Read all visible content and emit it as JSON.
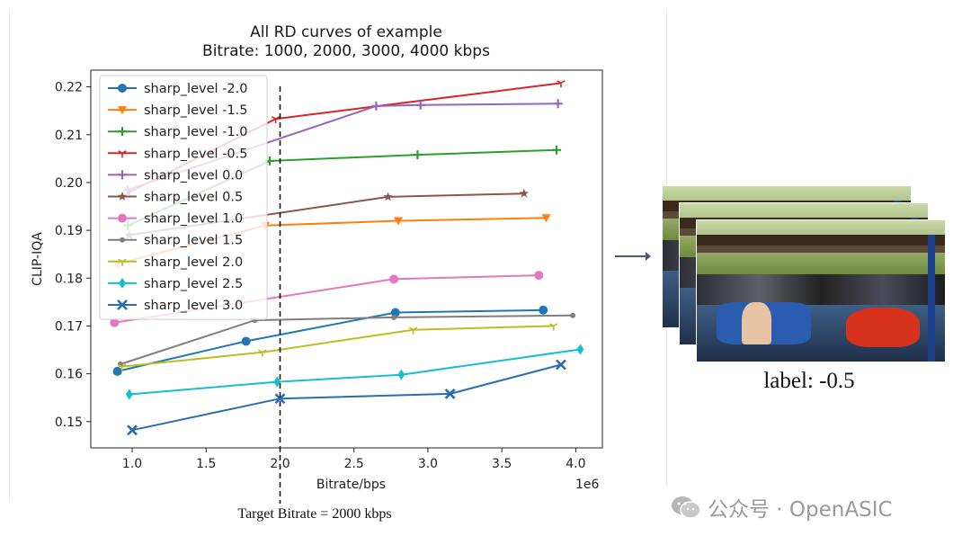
{
  "chart_data": {
    "type": "line",
    "title": "All RD curves of example",
    "subtitle": "Bitrate: 1000, 2000, 3000, 4000 kbps",
    "xlabel": "Bitrate/bps",
    "ylabel": "CLIP-IQA",
    "x_offset_label": "1e6",
    "xlim": [
      0.72,
      4.18
    ],
    "ylim": [
      0.1445,
      0.2235
    ],
    "xticks": [
      1.0,
      1.5,
      2.0,
      2.5,
      3.0,
      3.5,
      4.0
    ],
    "xtick_labels": [
      "1.0",
      "1.5",
      "2.0",
      "2.5",
      "3.0",
      "3.5",
      "4.0"
    ],
    "yticks": [
      0.15,
      0.16,
      0.17,
      0.18,
      0.19,
      0.2,
      0.21,
      0.22
    ],
    "ytick_labels": [
      "0.15",
      "0.16",
      "0.17",
      "0.18",
      "0.19",
      "0.20",
      "0.21",
      "0.22"
    ],
    "grid": false,
    "legend_position": "top-left",
    "target_line": {
      "x": 2.0,
      "label": "Target Bitrate = 2000 kbps"
    },
    "series": [
      {
        "name": "sharp_level -2.0",
        "color": "#1f77b4",
        "marker": "circle",
        "x": [
          0.9,
          1.77,
          2.78,
          3.78
        ],
        "y": [
          0.1605,
          0.1668,
          0.1728,
          0.1733
        ]
      },
      {
        "name": "sharp_level -1.5",
        "color": "#ff7f0e",
        "marker": "triangle-down",
        "x": [
          0.9,
          1.9,
          2.8,
          3.8
        ],
        "y": [
          0.183,
          0.191,
          0.192,
          0.1926
        ]
      },
      {
        "name": "sharp_level -1.0",
        "color": "#2ca02c",
        "marker": "plus",
        "x": [
          0.97,
          1.93,
          2.93,
          3.87
        ],
        "y": [
          0.191,
          0.2045,
          0.2058,
          0.2068
        ]
      },
      {
        "name": "sharp_level -0.5",
        "color": "#d62728",
        "marker": "tri",
        "x": [
          0.98,
          1.97,
          3.9
        ],
        "y": [
          0.198,
          0.2133,
          0.2208
        ]
      },
      {
        "name": "sharp_level 0.0",
        "color": "#9467bd",
        "marker": "plus",
        "x": [
          0.97,
          2.65,
          2.95,
          3.88
        ],
        "y": [
          0.1985,
          0.216,
          0.2162,
          0.2165
        ]
      },
      {
        "name": "sharp_level 0.5",
        "color": "#8c564b",
        "marker": "star",
        "x": [
          0.98,
          2.73,
          3.65
        ],
        "y": [
          0.189,
          0.197,
          0.1977
        ]
      },
      {
        "name": "sharp_level 1.0",
        "color": "#e377c2",
        "marker": "circle",
        "x": [
          0.88,
          2.77,
          3.75
        ],
        "y": [
          0.1707,
          0.1798,
          0.1806
        ]
      },
      {
        "name": "sharp_level 1.5",
        "color": "#7f7f7f",
        "marker": "dot",
        "x": [
          0.92,
          1.83,
          2.77,
          3.98
        ],
        "y": [
          0.162,
          0.1712,
          0.1718,
          0.1722
        ]
      },
      {
        "name": "sharp_level 2.0",
        "color": "#bcbd22",
        "marker": "tri",
        "x": [
          0.93,
          1.88,
          2.9,
          3.85
        ],
        "y": [
          0.1615,
          0.1645,
          0.1692,
          0.17
        ]
      },
      {
        "name": "sharp_level 2.5",
        "color": "#17becf",
        "marker": "diamond",
        "x": [
          0.98,
          1.98,
          2.82,
          4.03
        ],
        "y": [
          0.1557,
          0.1583,
          0.1598,
          0.1651
        ]
      },
      {
        "name": "sharp_level 3.0",
        "color": "#2b6cb0",
        "marker": "x",
        "x": [
          1.0,
          2.0,
          3.15,
          3.9
        ],
        "y": [
          0.1482,
          0.1548,
          0.1558,
          0.1619
        ]
      }
    ]
  },
  "arrow": {
    "icon": "right-arrow-icon"
  },
  "sample": {
    "label": "label: -0.5"
  },
  "watermark": {
    "text": "公众号 · OpenASIC",
    "icon": "wechat-icon"
  }
}
